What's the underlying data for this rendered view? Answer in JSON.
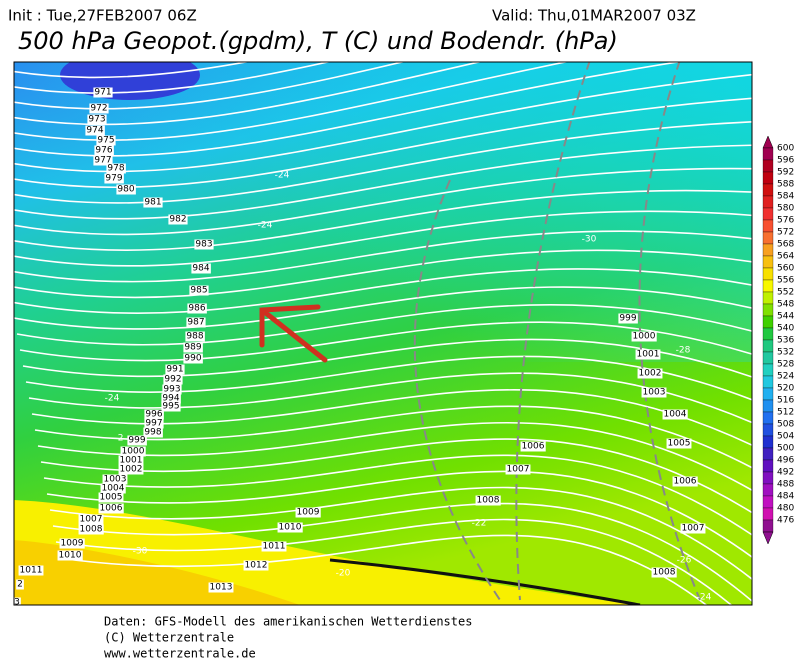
{
  "header": {
    "init": "Init : Tue,27FEB2007 06Z",
    "valid": "Valid: Thu,01MAR2007 03Z",
    "title": "500 hPa Geopot.(gpdm), T (C) und Bodendr. (hPa)"
  },
  "legend": {
    "levels": [
      "600",
      "596",
      "592",
      "588",
      "584",
      "580",
      "576",
      "572",
      "568",
      "564",
      "560",
      "556",
      "552",
      "548",
      "544",
      "540",
      "536",
      "532",
      "528",
      "524",
      "520",
      "516",
      "512",
      "508",
      "504",
      "500",
      "496",
      "492",
      "488",
      "484",
      "480",
      "476"
    ],
    "colors": [
      "#a00050",
      "#b00020",
      "#c00010",
      "#d01010",
      "#e02020",
      "#f03030",
      "#f85030",
      "#f87030",
      "#f8a020",
      "#f8c010",
      "#f8e000",
      "#f8f800",
      "#c0f000",
      "#80e000",
      "#40d000",
      "#20c840",
      "#20c880",
      "#20c8a0",
      "#20d0c0",
      "#20c8e0",
      "#20b0f0",
      "#2090f0",
      "#2070f0",
      "#2050e0",
      "#2030d0",
      "#4020c0",
      "#6010c0",
      "#8010c0",
      "#a010c0",
      "#c010c0",
      "#d010b0",
      "#901090"
    ]
  },
  "isobars": [
    "971",
    "972",
    "973",
    "974",
    "975",
    "976",
    "977",
    "978",
    "979",
    "980",
    "981",
    "982",
    "983",
    "984",
    "985",
    "986",
    "987",
    "988",
    "989",
    "990",
    "991",
    "992",
    "993",
    "994",
    "995",
    "996",
    "997",
    "998",
    "999",
    "1000",
    "1001",
    "1002",
    "1003",
    "1004",
    "1005",
    "1006",
    "1007",
    "1008",
    "1009",
    "1010",
    "1011",
    "1013",
    "1012",
    "1011",
    "1010",
    "1009",
    "1008",
    "1007",
    "1006",
    "999",
    "1000",
    "1001",
    "1002",
    "1003",
    "1004",
    "1005",
    "1006",
    "1007",
    "1008",
    "2",
    "3"
  ],
  "temperatures": [
    "-24",
    "-24",
    "-24",
    "-2",
    "-30",
    "-28",
    "-22",
    "-20",
    "-30",
    "-26",
    "-24"
  ],
  "footer": [
    "Daten: GFS-Modell des amerikanischen Wetterdienstes",
    "(C) Wetterzentrale",
    "www.wetterzentrale.de"
  ]
}
